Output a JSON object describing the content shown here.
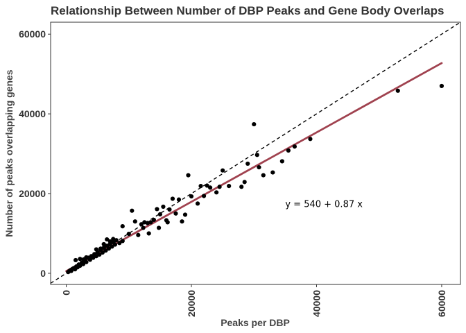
{
  "chart_data": {
    "type": "scatter",
    "title": "Relationship Between Number of DBP Peaks and Gene Body Overlaps",
    "xlabel": "Peaks per DBP",
    "ylabel": "Number of peaks overlapping genes",
    "xlim": [
      -2500,
      63000
    ],
    "ylim": [
      -2800,
      63000
    ],
    "xticks": [
      0,
      20000,
      40000,
      60000
    ],
    "yticks": [
      0,
      20000,
      40000,
      60000
    ],
    "x_tick_labels": [
      "0",
      "20000",
      "40000",
      "60000"
    ],
    "y_tick_labels": [
      "0",
      "20000",
      "40000",
      "60000"
    ],
    "grid": false,
    "legend": "none",
    "annotation": {
      "text": "y = 540 + 0.87 x",
      "x": 35000,
      "y": 17500
    },
    "fit_line": {
      "intercept": 540,
      "slope": 0.87,
      "x_range": [
        0,
        60000
      ],
      "color": "#a0424f"
    },
    "reference_line": {
      "intercept": 0,
      "slope": 1,
      "style": "dashed",
      "color": "#000000"
    },
    "points_color": "#000000",
    "points": [
      [
        300,
        300
      ],
      [
        500,
        550
      ],
      [
        700,
        800
      ],
      [
        800,
        600
      ],
      [
        1000,
        1100
      ],
      [
        1200,
        1300
      ],
      [
        1400,
        1000
      ],
      [
        1600,
        1700
      ],
      [
        1800,
        1500
      ],
      [
        2000,
        2200
      ],
      [
        2200,
        1900
      ],
      [
        2500,
        2700
      ],
      [
        2700,
        2300
      ],
      [
        3000,
        3200
      ],
      [
        3200,
        2800
      ],
      [
        3500,
        3900
      ],
      [
        3800,
        3400
      ],
      [
        4000,
        4300
      ],
      [
        4300,
        3900
      ],
      [
        4500,
        4800
      ],
      [
        4800,
        4300
      ],
      [
        5000,
        5300
      ],
      [
        5300,
        4700
      ],
      [
        5500,
        5900
      ],
      [
        5800,
        5200
      ],
      [
        6000,
        6400
      ],
      [
        6300,
        5700
      ],
      [
        6500,
        6900
      ],
      [
        6800,
        6200
      ],
      [
        7000,
        7300
      ],
      [
        7300,
        6700
      ],
      [
        7500,
        7800
      ],
      [
        7800,
        7200
      ],
      [
        8000,
        8300
      ],
      [
        8500,
        7600
      ],
      [
        9000,
        8100
      ],
      [
        1500,
        3300
      ],
      [
        2200,
        3600
      ],
      [
        2800,
        3500
      ],
      [
        3200,
        4000
      ],
      [
        4800,
        6000
      ],
      [
        5500,
        6200
      ],
      [
        6000,
        7300
      ],
      [
        6500,
        8500
      ],
      [
        7000,
        8000
      ],
      [
        7500,
        8600
      ],
      [
        9000,
        11800
      ],
      [
        10000,
        9900
      ],
      [
        10500,
        15700
      ],
      [
        11000,
        13000
      ],
      [
        11500,
        9600
      ],
      [
        12000,
        12300
      ],
      [
        12300,
        11400
      ],
      [
        12500,
        12800
      ],
      [
        13000,
        12600
      ],
      [
        13200,
        10000
      ],
      [
        13500,
        12800
      ],
      [
        14000,
        13400
      ],
      [
        14500,
        16100
      ],
      [
        14800,
        11400
      ],
      [
        15000,
        14800
      ],
      [
        15500,
        16700
      ],
      [
        16000,
        13300
      ],
      [
        16200,
        12800
      ],
      [
        16500,
        16000
      ],
      [
        17000,
        18700
      ],
      [
        17500,
        15000
      ],
      [
        18000,
        18500
      ],
      [
        18500,
        13000
      ],
      [
        19000,
        14700
      ],
      [
        19500,
        24600
      ],
      [
        20000,
        19300
      ],
      [
        21000,
        17500
      ],
      [
        21500,
        21900
      ],
      [
        22000,
        19400
      ],
      [
        22500,
        22000
      ],
      [
        23000,
        21500
      ],
      [
        24000,
        20300
      ],
      [
        24500,
        21700
      ],
      [
        25000,
        25800
      ],
      [
        26000,
        21900
      ],
      [
        28000,
        21700
      ],
      [
        28500,
        22900
      ],
      [
        29000,
        27500
      ],
      [
        30000,
        37400
      ],
      [
        30500,
        29700
      ],
      [
        30800,
        26600
      ],
      [
        31500,
        24600
      ],
      [
        33000,
        25300
      ],
      [
        34500,
        28100
      ],
      [
        35500,
        30800
      ],
      [
        36500,
        31800
      ],
      [
        39000,
        33700
      ],
      [
        53000,
        45800
      ],
      [
        60000,
        47000
      ]
    ]
  }
}
